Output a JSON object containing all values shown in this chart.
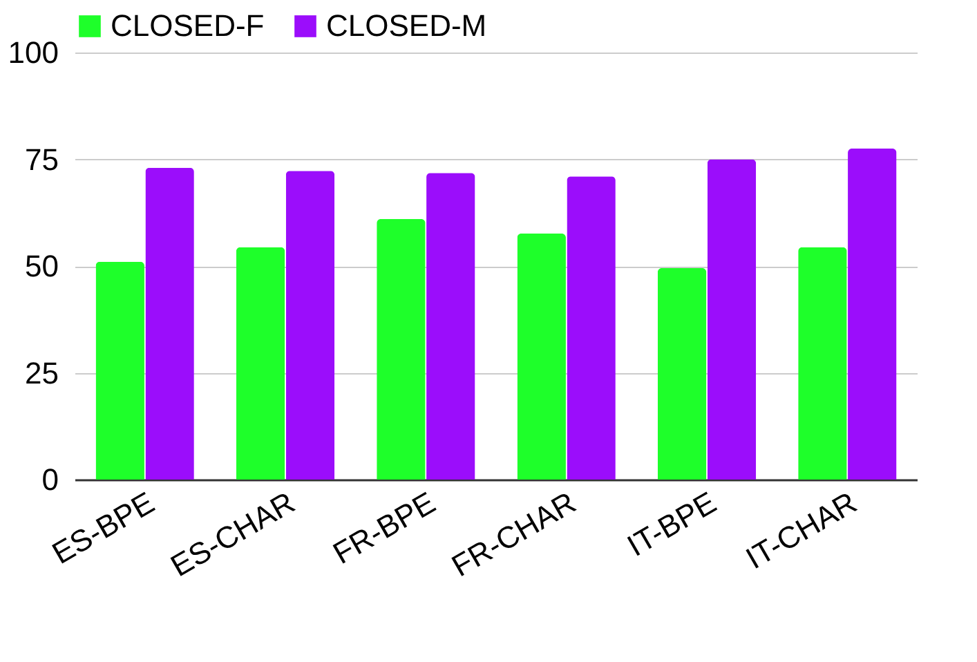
{
  "chart_data": {
    "type": "bar",
    "categories": [
      "ES-BPE",
      "ES-CHAR",
      "FR-BPE",
      "FR-CHAR",
      "IT-BPE",
      "IT-CHAR"
    ],
    "series": [
      {
        "name": "CLOSED-F",
        "color": "#1eff2a",
        "values": [
          51,
          54.4,
          61,
          57.6,
          49.5,
          54.4
        ]
      },
      {
        "name": "CLOSED-M",
        "color": "#9b0dfb",
        "values": [
          73,
          72.3,
          71.8,
          71,
          75,
          77.5
        ]
      }
    ],
    "ylim": [
      0,
      100
    ],
    "yticks": [
      0,
      25,
      50,
      75,
      100
    ],
    "grid": "y",
    "legend": "top"
  }
}
